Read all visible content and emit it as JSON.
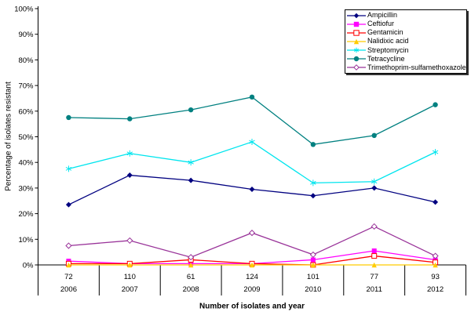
{
  "chart_data": {
    "type": "line",
    "title": "",
    "xlabel": "Number of isolates and year",
    "ylabel": "Percentage of isolates resistant",
    "categories_counts": [
      "72",
      "110",
      "61",
      "124",
      "101",
      "77",
      "93"
    ],
    "categories_years": [
      "2006",
      "2007",
      "2008",
      "2009",
      "2010",
      "2011",
      "2012"
    ],
    "ylim": [
      0,
      100
    ],
    "y_ticks": [
      0,
      10,
      20,
      30,
      40,
      50,
      60,
      70,
      80,
      90,
      100
    ],
    "y_tick_suffix": "%",
    "grid": false,
    "legend_position": "top-right",
    "series": [
      {
        "name": "Ampicillin",
        "color": "#000080",
        "marker": "diamond-filled",
        "values": [
          23.5,
          35,
          33,
          29.5,
          27,
          30,
          24.5
        ]
      },
      {
        "name": "Ceftiofur",
        "color": "#FF00FF",
        "marker": "square-filled",
        "values": [
          1.5,
          0.5,
          0.5,
          0.5,
          2,
          5.5,
          2
        ]
      },
      {
        "name": "Gentamicin",
        "color": "#FF0000",
        "marker": "square-open",
        "values": [
          0.5,
          0.5,
          2,
          0.5,
          0,
          3.5,
          1
        ]
      },
      {
        "name": "Nalidixic acid",
        "color": "#FFCC00",
        "marker": "triangle-filled",
        "values": [
          0,
          0,
          0,
          0,
          0,
          0,
          0
        ]
      },
      {
        "name": "Streptomycin",
        "color": "#00E5EE",
        "marker": "star",
        "values": [
          37.5,
          43.5,
          40,
          48,
          32,
          32.5,
          44
        ]
      },
      {
        "name": "Tetracycline",
        "color": "#008080",
        "marker": "circle-filled",
        "values": [
          57.5,
          57,
          60.5,
          65.5,
          47,
          50.5,
          62.5
        ]
      },
      {
        "name": "Trimethoprim-sulfamethoxazole",
        "color": "#993399",
        "marker": "diamond-open",
        "values": [
          7.5,
          9.5,
          3,
          12.5,
          4,
          15,
          3.5
        ]
      }
    ],
    "axis_color": "#000000"
  }
}
